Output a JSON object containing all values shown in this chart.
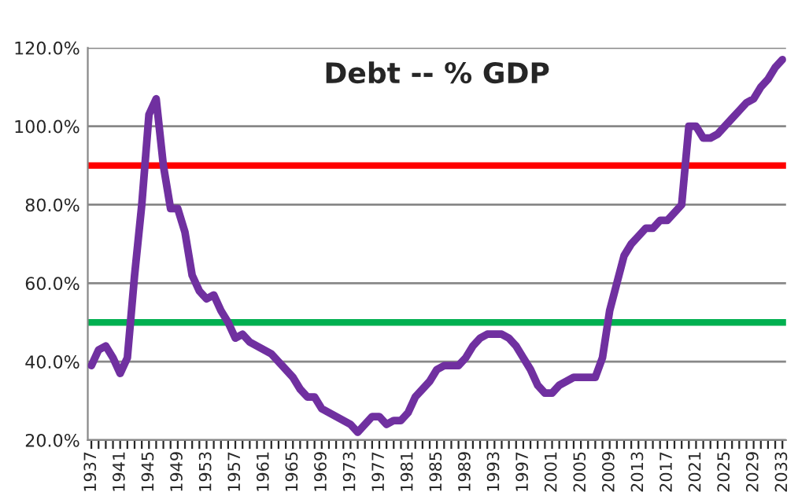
{
  "chart_data": {
    "type": "line",
    "title": "Debt -- % GDP",
    "categories": [
      "1937",
      null,
      null,
      null,
      "1941",
      null,
      null,
      null,
      "1945",
      null,
      null,
      null,
      "1949",
      null,
      null,
      null,
      "1953",
      null,
      null,
      null,
      "1957",
      null,
      null,
      null,
      "1961",
      null,
      null,
      null,
      "1965",
      null,
      null,
      null,
      "1969",
      null,
      null,
      null,
      "1973",
      null,
      null,
      null,
      "1977",
      null,
      null,
      null,
      "1981",
      null,
      null,
      null,
      "1985",
      null,
      null,
      null,
      "1989",
      null,
      null,
      null,
      "1993",
      null,
      null,
      null,
      "1997",
      null,
      null,
      null,
      "2001",
      null,
      null,
      null,
      "2005",
      null,
      null,
      null,
      "2009",
      null,
      null,
      null,
      "2013",
      null,
      null,
      null,
      "2017",
      null,
      null,
      null,
      "2021",
      null,
      null,
      null,
      "2025",
      null,
      null,
      null,
      "2029",
      null,
      null,
      null,
      "2033"
    ],
    "series": [
      {
        "color": "#7030a0",
        "values": [
          39,
          43,
          44,
          41,
          37,
          41,
          62,
          80,
          103,
          107,
          90,
          79,
          79,
          73,
          62,
          58,
          56,
          57,
          53,
          50,
          46,
          47,
          45,
          44,
          43,
          42,
          40,
          38,
          36,
          33,
          31,
          31,
          28,
          27,
          26,
          25,
          24,
          22,
          24,
          26,
          26,
          24,
          25,
          25,
          27,
          31,
          33,
          35,
          38,
          39,
          39,
          39,
          41,
          44,
          46,
          47,
          47,
          47,
          46,
          44,
          41,
          38,
          34,
          32,
          32,
          34,
          35,
          36,
          36,
          36,
          36,
          41,
          53,
          60,
          67,
          70,
          72,
          74,
          74,
          76,
          76,
          78,
          80,
          100,
          100,
          97,
          97,
          98,
          100,
          102,
          104,
          106,
          107,
          110,
          112,
          115,
          117
        ]
      }
    ],
    "ylim": [
      20,
      120
    ],
    "yticks": [
      {
        "value": 20,
        "label": "20.0%"
      },
      {
        "value": 40,
        "label": "40.0%"
      },
      {
        "value": 60,
        "label": "60.0%"
      },
      {
        "value": 80,
        "label": "80.0%"
      },
      {
        "value": 100,
        "label": "100.0%"
      },
      {
        "value": 120,
        "label": "120.0%"
      }
    ],
    "grid": "y",
    "line_style": "solid",
    "marker": "none",
    "ref_lines": [
      {
        "axis": "y",
        "value": 90,
        "color": "#ff0000"
      },
      {
        "axis": "y",
        "value": 50,
        "color": "#00b050"
      }
    ]
  }
}
